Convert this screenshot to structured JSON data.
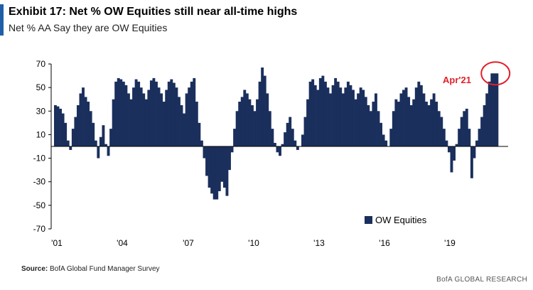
{
  "header": {
    "title": "Exhibit 17: Net % OW Equities still near all-time highs",
    "subtitle": "Net % AA Say they are OW Equities"
  },
  "footer": {
    "source_label": "Source:",
    "source_text": "BofA Global Fund Manager Survey",
    "brand": "BofA GLOBAL RESEARCH"
  },
  "colors": {
    "bar": "#1a2f5c",
    "annotation": "#e0202a",
    "axis": "#000000",
    "accent": "#1f5fa8"
  },
  "chart_data": {
    "type": "bar",
    "ylim": [
      -70,
      70
    ],
    "yticks": [
      70,
      50,
      30,
      10,
      -10,
      -30,
      -50,
      -70
    ],
    "xticks": [
      "'01",
      "'04",
      "'07",
      "'10",
      "'13",
      "'16",
      "'19"
    ],
    "legend": {
      "entries": [
        "OW Equities"
      ],
      "placement": "bottom-right"
    },
    "annotation": {
      "text": "Apr'21"
    },
    "series": [
      {
        "name": "OW Equities",
        "values": [
          35,
          34,
          32,
          28,
          20,
          5,
          -3,
          15,
          25,
          35,
          45,
          50,
          42,
          38,
          30,
          20,
          5,
          -10,
          8,
          18,
          2,
          -8,
          15,
          40,
          55,
          58,
          57,
          55,
          52,
          45,
          40,
          50,
          57,
          55,
          50,
          45,
          40,
          48,
          56,
          58,
          55,
          50,
          45,
          38,
          48,
          55,
          57,
          54,
          50,
          42,
          35,
          28,
          45,
          50,
          55,
          58,
          38,
          20,
          5,
          -10,
          -25,
          -35,
          -40,
          -45,
          -45,
          -38,
          -30,
          -35,
          -42,
          -20,
          -5,
          15,
          30,
          38,
          42,
          48,
          45,
          40,
          35,
          30,
          40,
          55,
          67,
          60,
          45,
          30,
          15,
          3,
          -5,
          -8,
          2,
          12,
          20,
          25,
          15,
          5,
          -3,
          0,
          10,
          25,
          40,
          55,
          57,
          52,
          48,
          58,
          60,
          55,
          50,
          45,
          52,
          58,
          55,
          50,
          45,
          50,
          55,
          52,
          48,
          40,
          45,
          50,
          48,
          42,
          35,
          30,
          38,
          45,
          30,
          20,
          10,
          5,
          0,
          15,
          30,
          40,
          38,
          45,
          48,
          50,
          42,
          35,
          40,
          50,
          55,
          52,
          45,
          38,
          35,
          40,
          45,
          38,
          30,
          25,
          15,
          5,
          -5,
          -22,
          -12,
          2,
          15,
          25,
          30,
          32,
          15,
          -27,
          -10,
          5,
          15,
          25,
          35,
          45,
          55,
          62,
          62,
          62
        ]
      }
    ]
  }
}
